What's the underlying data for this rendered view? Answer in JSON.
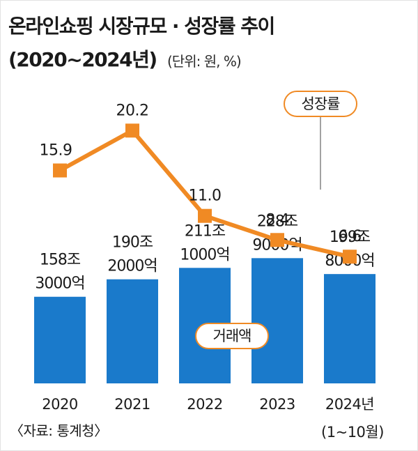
{
  "header": {
    "title": "온라인쇼핑 시장규모 · 성장률 추이",
    "subtitle": "(2020~2024년)",
    "unit": "(단위: 원, %)"
  },
  "source": "〈자료: 통계청〉",
  "colors": {
    "bar": "#1a7acb",
    "line": "#f08a24",
    "marker": "#f08a24",
    "pill_border": "#f08a24"
  },
  "chart_data": [
    {
      "type": "bar",
      "name_label": "거래액",
      "categories": [
        "2020",
        "2021",
        "2022",
        "2023",
        "2024년"
      ],
      "category_notes": [
        "",
        "",
        "",
        "",
        "(1~10월)"
      ],
      "values": [
        158.3,
        190.2,
        211.1,
        228.9,
        199.8
      ],
      "value_labels": [
        [
          "158조",
          "3000억"
        ],
        [
          "190조",
          "2000억"
        ],
        [
          "211조",
          "1000억"
        ],
        [
          "228조",
          "9000억"
        ],
        [
          "199조",
          "8000억"
        ]
      ],
      "ylim": [
        0,
        250
      ]
    },
    {
      "type": "line",
      "name_label": "성장률",
      "categories": [
        "2020",
        "2021",
        "2022",
        "2023",
        "2024년"
      ],
      "values": [
        15.9,
        20.2,
        11.0,
        8.4,
        6.6
      ],
      "value_labels": [
        "15.9",
        "20.2",
        "11.0",
        "8.4",
        "6.6"
      ],
      "ylim": [
        0,
        25
      ]
    }
  ]
}
